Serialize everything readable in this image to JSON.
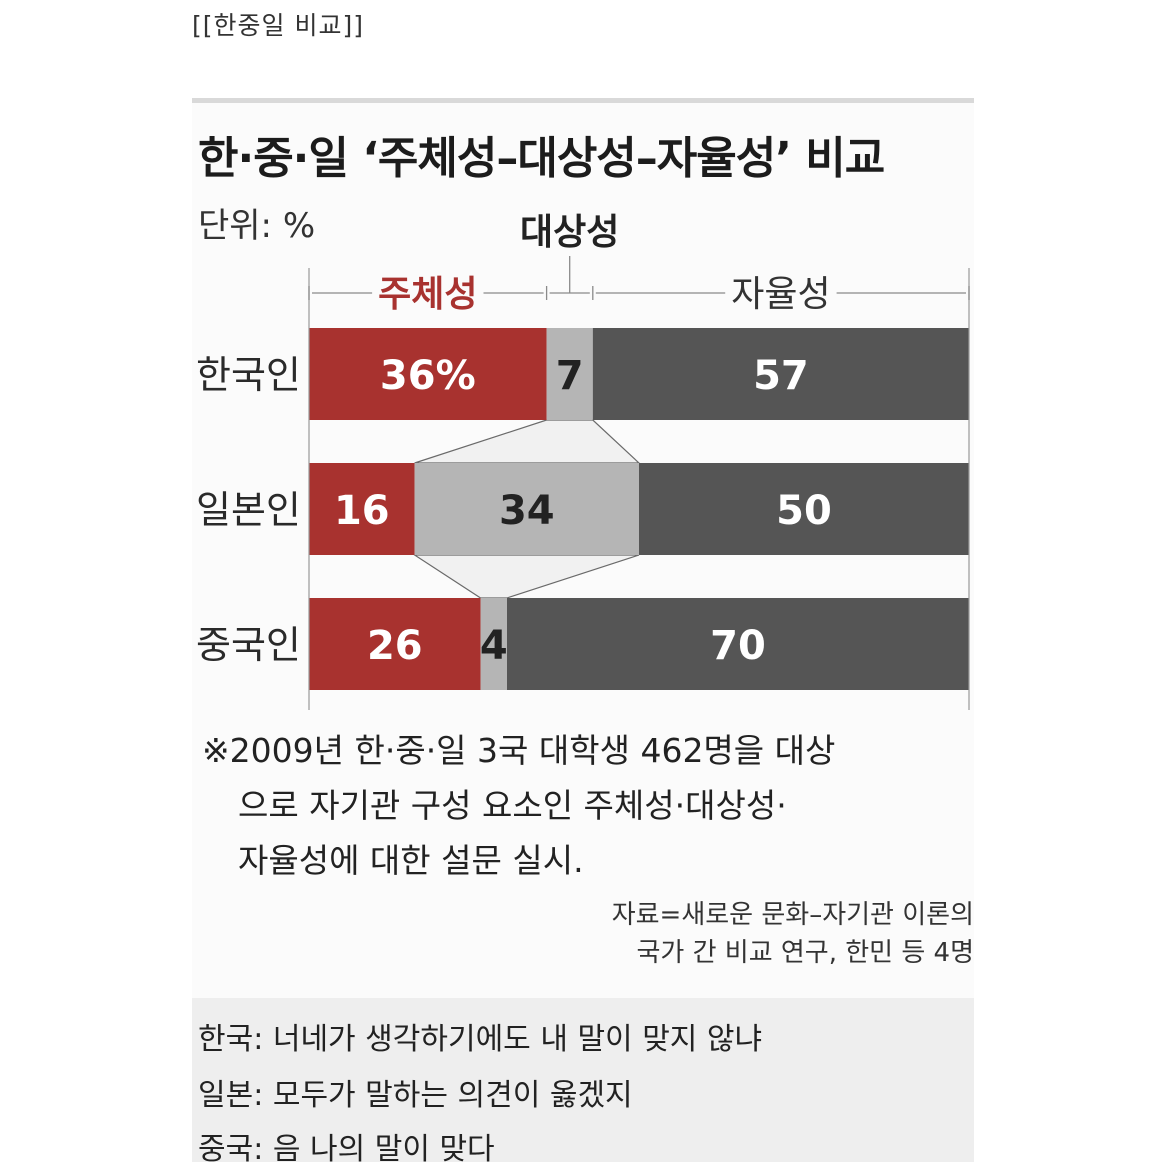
{
  "post_caption": "[[한중일 비교]]",
  "chart_data": {
    "type": "bar",
    "stacked": true,
    "orientation": "horizontal",
    "title": "한·중·일 ‘주체성–대상성–자율성’ 비교",
    "unit_label": "단위: %",
    "categories": [
      "한국인",
      "일본인",
      "중국인"
    ],
    "series": [
      {
        "name": "주체성",
        "values": [
          36,
          16,
          26
        ],
        "color": "#a8322f",
        "labels": [
          "36%",
          "16",
          "26"
        ]
      },
      {
        "name": "대상성",
        "values": [
          7,
          34,
          4
        ],
        "color": "#b5b5b5",
        "labels": [
          "7",
          "34",
          "4"
        ]
      },
      {
        "name": "자율성",
        "values": [
          57,
          50,
          70
        ],
        "color": "#555555",
        "labels": [
          "57",
          "50",
          "70"
        ]
      }
    ],
    "xlim": [
      0,
      100
    ],
    "legend_placement": "top",
    "note_lines": [
      "※2009년 한·중·일 3국 대학생 462명을 대상",
      "으로 자기관 구성 요소인 주체성·대상성·",
      "자율성에 대한 설문 실시."
    ],
    "source_lines": [
      "자료=새로운 문화–자기관 이론의",
      "국가 간 비교 연구, 한민 등 4명"
    ]
  },
  "caption_lines": [
    "한국: 너네가 생각하기에도 내 말이 맞지 않냐",
    "일본: 모두가 말하는 의견이 옳겠지",
    "중국: 음 나의 말이 맞다"
  ]
}
